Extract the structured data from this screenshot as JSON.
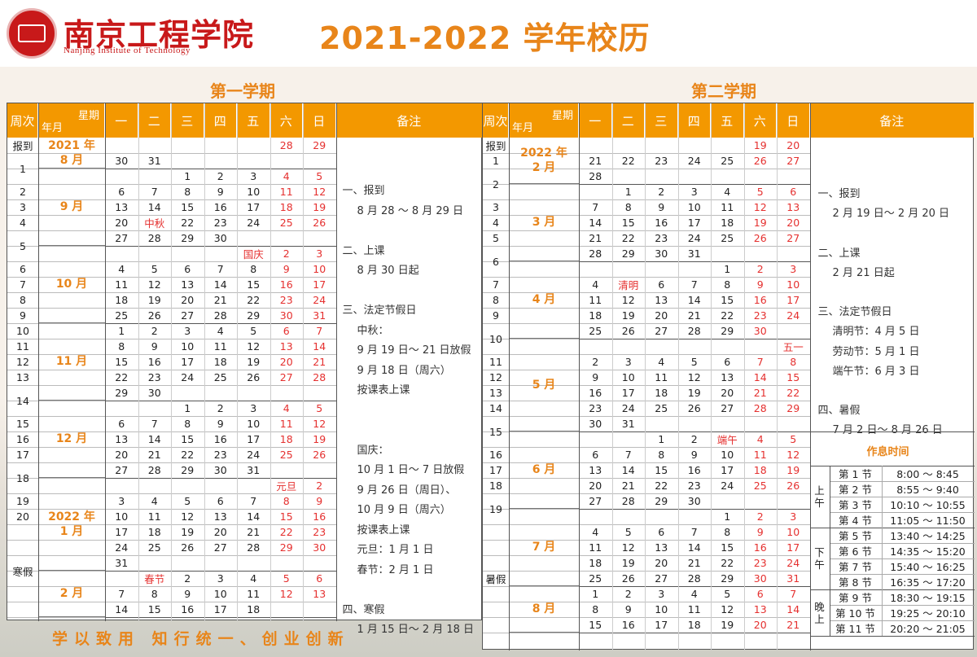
{
  "school": {
    "name_cn": "南京工程学院",
    "name_en": "Nanjing Institute of Technology"
  },
  "title": "2021-2022 学年校历",
  "footer": "学以致用 知行统一、创业创新",
  "sem1": {
    "title": "第一学期",
    "headers": {
      "week": "周次",
      "weekday": "星期",
      "month": "年月",
      "days": [
        "一",
        "二",
        "三",
        "四",
        "五",
        "六",
        "日"
      ],
      "notes": "备注"
    },
    "rows": [
      {
        "w": "报到",
        "d": [
          "",
          "",
          "",
          "",
          "",
          "28",
          "29"
        ]
      },
      {
        "w": "1",
        "d": [
          "30",
          "31",
          "",
          "",
          "",
          "",
          ""
        ]
      },
      {
        "w": "",
        "d": [
          "",
          "",
          "1",
          "2",
          "3",
          "4",
          "5"
        ]
      },
      {
        "w": "2",
        "d": [
          "6",
          "7",
          "8",
          "9",
          "10",
          "11",
          "12"
        ]
      },
      {
        "w": "3",
        "d": [
          "13",
          "14",
          "15",
          "16",
          "17",
          "18",
          "19"
        ]
      },
      {
        "w": "4",
        "d": [
          "20",
          "中秋",
          "22",
          "23",
          "24",
          "25",
          "26"
        ]
      },
      {
        "w": "5",
        "d": [
          "27",
          "28",
          "29",
          "30",
          "",
          "",
          ""
        ]
      },
      {
        "w": "",
        "d": [
          "",
          "",
          "",
          "",
          "国庆",
          "2",
          "3"
        ]
      },
      {
        "w": "6",
        "d": [
          "4",
          "5",
          "6",
          "7",
          "8",
          "9",
          "10"
        ]
      },
      {
        "w": "7",
        "d": [
          "11",
          "12",
          "13",
          "14",
          "15",
          "16",
          "17"
        ]
      },
      {
        "w": "8",
        "d": [
          "18",
          "19",
          "20",
          "21",
          "22",
          "23",
          "24"
        ]
      },
      {
        "w": "9",
        "d": [
          "25",
          "26",
          "27",
          "28",
          "29",
          "30",
          "31"
        ]
      },
      {
        "w": "10",
        "d": [
          "1",
          "2",
          "3",
          "4",
          "5",
          "6",
          "7"
        ]
      },
      {
        "w": "11",
        "d": [
          "8",
          "9",
          "10",
          "11",
          "12",
          "13",
          "14"
        ]
      },
      {
        "w": "12",
        "d": [
          "15",
          "16",
          "17",
          "18",
          "19",
          "20",
          "21"
        ]
      },
      {
        "w": "13",
        "d": [
          "22",
          "23",
          "24",
          "25",
          "26",
          "27",
          "28"
        ]
      },
      {
        "w": "14",
        "d": [
          "29",
          "30",
          "",
          "",
          "",
          "",
          ""
        ]
      },
      {
        "w": "",
        "d": [
          "",
          "",
          "1",
          "2",
          "3",
          "4",
          "5"
        ]
      },
      {
        "w": "15",
        "d": [
          "6",
          "7",
          "8",
          "9",
          "10",
          "11",
          "12"
        ]
      },
      {
        "w": "16",
        "d": [
          "13",
          "14",
          "15",
          "16",
          "17",
          "18",
          "19"
        ]
      },
      {
        "w": "17",
        "d": [
          "20",
          "21",
          "22",
          "23",
          "24",
          "25",
          "26"
        ]
      },
      {
        "w": "18",
        "d": [
          "27",
          "28",
          "29",
          "30",
          "31",
          "",
          ""
        ]
      },
      {
        "w": "",
        "d": [
          "",
          "",
          "",
          "",
          "",
          "元旦",
          "2"
        ]
      },
      {
        "w": "19",
        "d": [
          "3",
          "4",
          "5",
          "6",
          "7",
          "8",
          "9"
        ]
      },
      {
        "w": "20",
        "d": [
          "10",
          "11",
          "12",
          "13",
          "14",
          "15",
          "16"
        ]
      },
      {
        "w": "寒假",
        "d": [
          "17",
          "18",
          "19",
          "20",
          "21",
          "22",
          "23"
        ]
      },
      {
        "w": "",
        "d": [
          "24",
          "25",
          "26",
          "27",
          "28",
          "29",
          "30"
        ]
      },
      {
        "w": "",
        "d": [
          "31",
          "",
          "",
          "",
          "",
          "",
          ""
        ]
      },
      {
        "w": "",
        "d": [
          "",
          "春节",
          "2",
          "3",
          "4",
          "5",
          "6"
        ]
      },
      {
        "w": "",
        "d": [
          "7",
          "8",
          "9",
          "10",
          "11",
          "12",
          "13"
        ]
      },
      {
        "w": "",
        "d": [
          "14",
          "15",
          "16",
          "17",
          "18",
          "",
          ""
        ]
      }
    ],
    "months": [
      {
        "label": "2021 年\n8 月",
        "from": 0,
        "to": 2
      },
      {
        "label": "9 月",
        "from": 2,
        "to": 7
      },
      {
        "label": "10 月",
        "from": 7,
        "to": 12
      },
      {
        "label": "11 月",
        "from": 12,
        "to": 17
      },
      {
        "label": "12 月",
        "from": 17,
        "to": 22
      },
      {
        "label": "2022 年\n1 月",
        "from": 22,
        "to": 28
      },
      {
        "label": "2 月",
        "from": 28,
        "to": 31
      }
    ],
    "notes": [
      {
        "t": "一、报到",
        "c": "h"
      },
      {
        "t": "8 月 28 ～ 8 月 29 日",
        "c": ""
      },
      {
        "t": "",
        "c": ""
      },
      {
        "t": "二、上课",
        "c": "h"
      },
      {
        "t": "8 月 30 日起",
        "c": ""
      },
      {
        "t": "",
        "c": ""
      },
      {
        "t": "三、法定节假日",
        "c": "h"
      },
      {
        "t": "中秋：",
        "c": "hs"
      },
      {
        "t": "9 月 19 日～ 21 日放假",
        "c": ""
      },
      {
        "t": "9 月 18 日（周六）",
        "c": ""
      },
      {
        "t": "按课表上课",
        "c": ""
      },
      {
        "t": "",
        "c": ""
      },
      {
        "t": "",
        "c": ""
      },
      {
        "t": "国庆：",
        "c": "hs"
      },
      {
        "t": "10 月 1 日～ 7 日放假",
        "c": ""
      },
      {
        "t": "9 月 26 日（周日）、",
        "c": ""
      },
      {
        "t": "10 月 9 日（周六）",
        "c": ""
      },
      {
        "t": "按课表上课",
        "c": ""
      },
      {
        "t": "元旦：1 月 1 日",
        "c": "hs"
      },
      {
        "t": "春节：2 月 1 日",
        "c": "hs"
      },
      {
        "t": "",
        "c": ""
      },
      {
        "t": "四、寒假",
        "c": "h"
      },
      {
        "t": "1 月 15 日～ 2 月 18 日",
        "c": ""
      }
    ]
  },
  "sem2": {
    "title": "第二学期",
    "rows": [
      {
        "w": "报到",
        "d": [
          "",
          "",
          "",
          "",
          "",
          "19",
          "20"
        ]
      },
      {
        "w": "1",
        "d": [
          "21",
          "22",
          "23",
          "24",
          "25",
          "26",
          "27"
        ]
      },
      {
        "w": "2",
        "d": [
          "28",
          "",
          "",
          "",
          "",
          "",
          ""
        ]
      },
      {
        "w": "",
        "d": [
          "",
          "1",
          "2",
          "3",
          "4",
          "5",
          "6"
        ]
      },
      {
        "w": "3",
        "d": [
          "7",
          "8",
          "9",
          "10",
          "11",
          "12",
          "13"
        ]
      },
      {
        "w": "4",
        "d": [
          "14",
          "15",
          "16",
          "17",
          "18",
          "19",
          "20"
        ]
      },
      {
        "w": "5",
        "d": [
          "21",
          "22",
          "23",
          "24",
          "25",
          "26",
          "27"
        ]
      },
      {
        "w": "6",
        "d": [
          "28",
          "29",
          "30",
          "31",
          "",
          "",
          ""
        ]
      },
      {
        "w": "",
        "d": [
          "",
          "",
          "",
          "",
          "1",
          "2",
          "3"
        ]
      },
      {
        "w": "7",
        "d": [
          "4",
          "清明",
          "6",
          "7",
          "8",
          "9",
          "10"
        ]
      },
      {
        "w": "8",
        "d": [
          "11",
          "12",
          "13",
          "14",
          "15",
          "16",
          "17"
        ]
      },
      {
        "w": "9",
        "d": [
          "18",
          "19",
          "20",
          "21",
          "22",
          "23",
          "24"
        ]
      },
      {
        "w": "10",
        "d": [
          "25",
          "26",
          "27",
          "28",
          "29",
          "30",
          ""
        ]
      },
      {
        "w": "",
        "d": [
          "",
          "",
          "",
          "",
          "",
          "",
          "五一"
        ]
      },
      {
        "w": "11",
        "d": [
          "2",
          "3",
          "4",
          "5",
          "6",
          "7",
          "8"
        ]
      },
      {
        "w": "12",
        "d": [
          "9",
          "10",
          "11",
          "12",
          "13",
          "14",
          "15"
        ]
      },
      {
        "w": "13",
        "d": [
          "16",
          "17",
          "18",
          "19",
          "20",
          "21",
          "22"
        ]
      },
      {
        "w": "14",
        "d": [
          "23",
          "24",
          "25",
          "26",
          "27",
          "28",
          "29"
        ]
      },
      {
        "w": "15",
        "d": [
          "30",
          "31",
          "",
          "",
          "",
          "",
          ""
        ]
      },
      {
        "w": "",
        "d": [
          "",
          "",
          "1",
          "2",
          "端午",
          "4",
          "5"
        ]
      },
      {
        "w": "16",
        "d": [
          "6",
          "7",
          "8",
          "9",
          "10",
          "11",
          "12"
        ]
      },
      {
        "w": "17",
        "d": [
          "13",
          "14",
          "15",
          "16",
          "17",
          "18",
          "19"
        ]
      },
      {
        "w": "18",
        "d": [
          "20",
          "21",
          "22",
          "23",
          "24",
          "25",
          "26"
        ]
      },
      {
        "w": "19",
        "d": [
          "27",
          "28",
          "29",
          "30",
          "",
          "",
          ""
        ]
      },
      {
        "w": "",
        "d": [
          "",
          "",
          "",
          "",
          "1",
          "2",
          "3"
        ]
      },
      {
        "w": "暑假",
        "d": [
          "4",
          "5",
          "6",
          "7",
          "8",
          "9",
          "10"
        ]
      },
      {
        "w": "",
        "d": [
          "11",
          "12",
          "13",
          "14",
          "15",
          "16",
          "17"
        ]
      },
      {
        "w": "",
        "d": [
          "18",
          "19",
          "20",
          "21",
          "22",
          "23",
          "24"
        ]
      },
      {
        "w": "",
        "d": [
          "25",
          "26",
          "27",
          "28",
          "29",
          "30",
          "31"
        ]
      },
      {
        "w": "",
        "d": [
          "1",
          "2",
          "3",
          "4",
          "5",
          "6",
          "7"
        ]
      },
      {
        "w": "",
        "d": [
          "8",
          "9",
          "10",
          "11",
          "12",
          "13",
          "14"
        ]
      },
      {
        "w": "",
        "d": [
          "15",
          "16",
          "17",
          "18",
          "19",
          "20",
          "21"
        ]
      }
    ],
    "months": [
      {
        "label": "2022 年\n2 月",
        "from": 0,
        "to": 3
      },
      {
        "label": "3 月",
        "from": 3,
        "to": 8
      },
      {
        "label": "4 月",
        "from": 8,
        "to": 13
      },
      {
        "label": "5 月",
        "from": 13,
        "to": 19
      },
      {
        "label": "6 月",
        "from": 19,
        "to": 24
      },
      {
        "label": "7 月",
        "from": 24,
        "to": 29
      },
      {
        "label": "8 月",
        "from": 29,
        "to": 32
      }
    ],
    "notes": [
      {
        "t": "一、报到",
        "c": "h"
      },
      {
        "t": "2 月 19 日～ 2 月 20 日",
        "c": ""
      },
      {
        "t": "",
        "c": ""
      },
      {
        "t": "二、上课",
        "c": "h"
      },
      {
        "t": "2 月 21 日起",
        "c": ""
      },
      {
        "t": "",
        "c": ""
      },
      {
        "t": "三、法定节假日",
        "c": "h"
      },
      {
        "t": "清明节：4 月 5 日",
        "c": "hs"
      },
      {
        "t": "劳动节：5 月 1 日",
        "c": "hs"
      },
      {
        "t": "端午节：6 月 3 日",
        "c": "hs"
      },
      {
        "t": "",
        "c": ""
      },
      {
        "t": "四、暑假",
        "c": "h"
      },
      {
        "t": "7 月 2 日～ 8 月 26 日",
        "c": ""
      }
    ],
    "rest": {
      "title": "作息时间",
      "groups": [
        {
          "label": "上午",
          "rows": [
            [
              "第 1 节",
              "8:00 ～ 8:45"
            ],
            [
              "第 2 节",
              "8:55 ～ 9:40"
            ],
            [
              "第 3 节",
              "10:10 ～ 10:55"
            ],
            [
              "第 4 节",
              "11:05 ～ 11:50"
            ]
          ]
        },
        {
          "label": "下午",
          "rows": [
            [
              "第 5 节",
              "13:40 ～ 14:25"
            ],
            [
              "第 6 节",
              "14:35 ～ 15:20"
            ],
            [
              "第 7 节",
              "15:40 ～ 16:25"
            ],
            [
              "第 8 节",
              "16:35 ～ 17:20"
            ]
          ]
        },
        {
          "label": "晚上",
          "rows": [
            [
              "第 9 节",
              "18:30 ～ 19:15"
            ],
            [
              "第 10 节",
              "19:25 ～ 20:10"
            ],
            [
              "第 11 节",
              "20:20 ～ 21:05"
            ]
          ]
        }
      ]
    }
  }
}
